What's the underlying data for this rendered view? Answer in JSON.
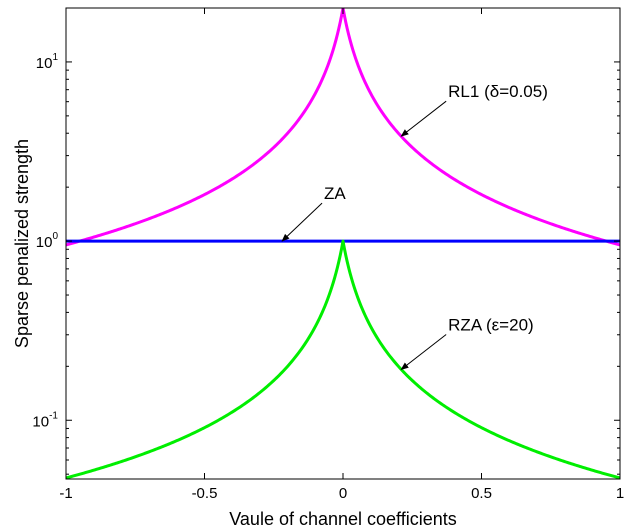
{
  "chart_data": {
    "type": "line",
    "title": "",
    "xlabel": "Vaule of channel coefficients",
    "ylabel": "Sparse penalized strength",
    "xlim": [
      -1,
      1
    ],
    "ylim": [
      0.047,
      20
    ],
    "yscale": "log",
    "grid": false,
    "x_ticks": [
      {
        "value": -1,
        "label": "-1"
      },
      {
        "value": -0.5,
        "label": "-0.5"
      },
      {
        "value": 0,
        "label": "0"
      },
      {
        "value": 0.5,
        "label": "0.5"
      },
      {
        "value": 1,
        "label": "1"
      }
    ],
    "y_ticks": [
      {
        "value": 0.1,
        "base": "10",
        "exp": "-1"
      },
      {
        "value": 1,
        "base": "10",
        "exp": "0"
      },
      {
        "value": 10,
        "base": "10",
        "exp": "1"
      }
    ],
    "series": [
      {
        "key": "rl1",
        "color": "#ff00ff",
        "formula": "1/(|x|+0.05)",
        "x_step": 0.005
      },
      {
        "key": "za",
        "color": "#0000ff",
        "x": [
          -1,
          1
        ],
        "y": [
          1,
          1
        ]
      },
      {
        "key": "rza",
        "color": "#00ee00",
        "formula": "1/(1+20|x|)",
        "x_step": 0.005
      }
    ],
    "annotations": [
      {
        "key": "rl1",
        "text": "RL1 (δ=0.05)",
        "point_x": 0.21,
        "point_y": 3.85
      },
      {
        "key": "za",
        "text": "ZA",
        "point_x": -0.22,
        "point_y": 1.0
      },
      {
        "key": "rza",
        "text": "RZA (ε=20)",
        "point_x": 0.21,
        "point_y": 0.192
      }
    ]
  }
}
